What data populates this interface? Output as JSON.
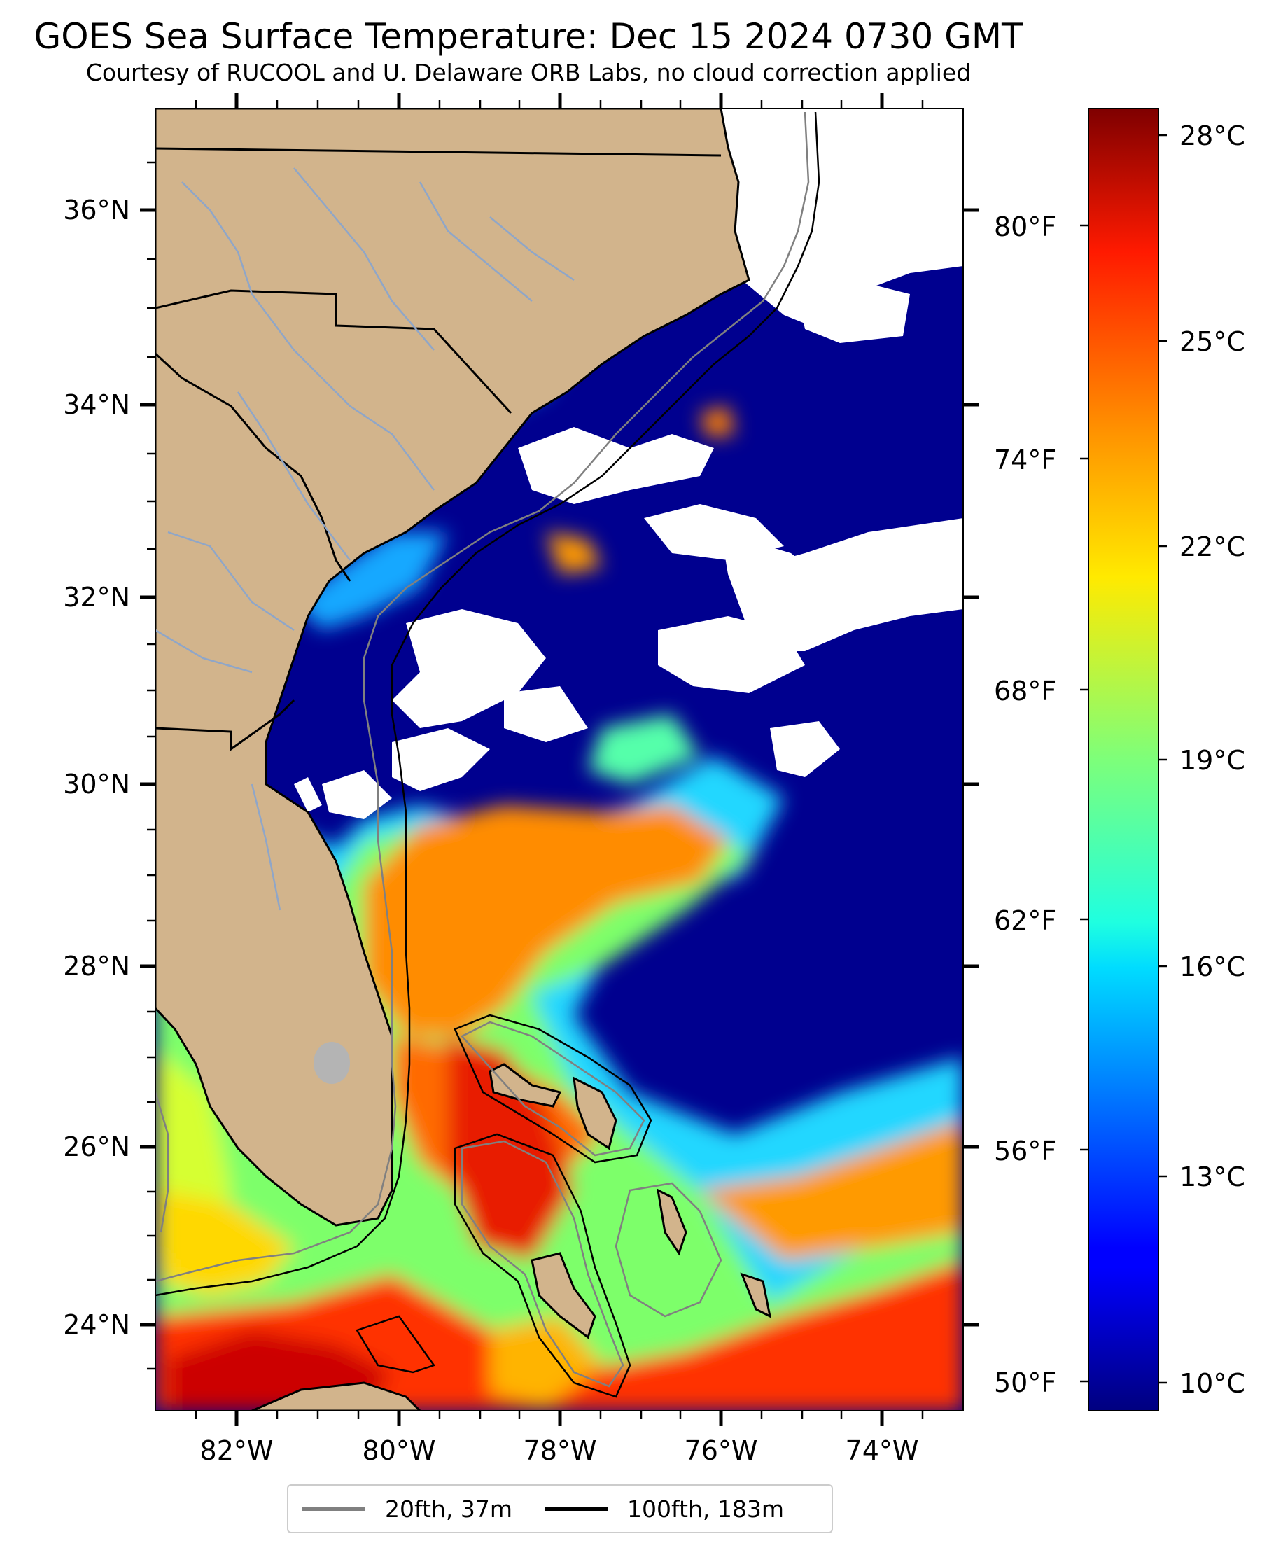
{
  "title": "GOES Sea Surface Temperature: Dec 15 2024 0730 GMT",
  "subtitle": "Courtesy of RUCOOL and U. Delaware ORB Labs, no cloud correction applied",
  "map": {
    "lat_labels": [
      "36°N",
      "34°N",
      "32°N",
      "30°N",
      "28°N",
      "26°N",
      "24°N"
    ],
    "lon_labels": [
      "82°W",
      "80°W",
      "78°W",
      "76°W",
      "74°W"
    ],
    "fahrenheit_labels": [
      "80°F",
      "74°F",
      "68°F",
      "62°F",
      "56°F",
      "50°F"
    ],
    "extent": {
      "lon_min": -83,
      "lon_max": -73,
      "lat_min": 23.1,
      "lat_max": 37.1
    },
    "colors": {
      "land": "#d2b48c",
      "cloud": "#ffffff",
      "cold_water": "#00008f",
      "rivers": "#8fa6c8"
    }
  },
  "colorbar": {
    "labels": [
      "28°C",
      "25°C",
      "22°C",
      "19°C",
      "16°C",
      "13°C",
      "10°C"
    ],
    "range_c": [
      9.5,
      28.5
    ],
    "colormap": "jet"
  },
  "legend": {
    "items": [
      {
        "label": "20fth, 37m",
        "color": "#808080"
      },
      {
        "label": "100fth, 183m",
        "color": "#000000"
      }
    ]
  }
}
